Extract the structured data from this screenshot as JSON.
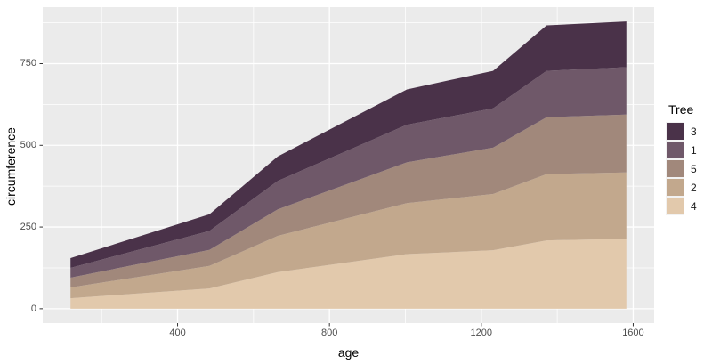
{
  "chart_data": {
    "type": "area",
    "stacked": true,
    "title": "",
    "xlabel": "age",
    "ylabel": "circumference",
    "x": [
      118,
      484,
      664,
      1004,
      1231,
      1372,
      1582
    ],
    "series": [
      {
        "name": "4",
        "color": "#e2c9ac",
        "values": [
          32,
          62,
          112,
          167,
          179,
          209,
          214
        ]
      },
      {
        "name": "2",
        "color": "#c2a88d",
        "values": [
          33,
          69,
          111,
          156,
          172,
          203,
          203
        ]
      },
      {
        "name": "5",
        "color": "#a1887b",
        "values": [
          30,
          49,
          81,
          125,
          142,
          174,
          177
        ]
      },
      {
        "name": "1",
        "color": "#6f5869",
        "values": [
          30,
          58,
          87,
          115,
          120,
          142,
          145
        ]
      },
      {
        "name": "3",
        "color": "#4a3249",
        "values": [
          30,
          51,
          75,
          108,
          115,
          139,
          140
        ]
      }
    ],
    "legend": {
      "title": "Tree",
      "items": [
        "3",
        "1",
        "5",
        "2",
        "4"
      ],
      "position": "right"
    },
    "x_ticks": [
      400,
      800,
      1200,
      1600
    ],
    "y_ticks": [
      0,
      250,
      500,
      750
    ],
    "x_minor": [
      200,
      600,
      1000,
      1400
    ],
    "y_minor": [
      125,
      375,
      625,
      875
    ],
    "xlim": [
      44.8,
      1655.2
    ],
    "ylim": [
      -43.95,
      922.95
    ],
    "grid": true,
    "colors": {
      "panel_bg": "#ebebeb",
      "grid_major": "#ffffff",
      "grid_minor": "#ffffff",
      "tick_mark": "#333333",
      "tick_label": "#4d4d4d",
      "axis_title": "#000000"
    }
  }
}
